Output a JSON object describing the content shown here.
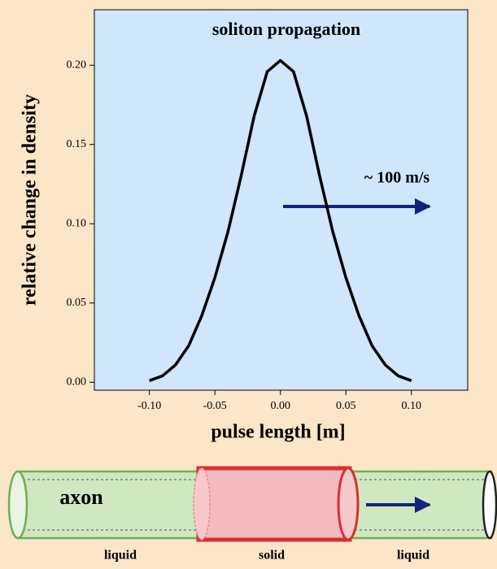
{
  "chart_data": {
    "type": "line",
    "title": "soliton propagation",
    "x_label": "pulse length [m]",
    "y_label": "relative change in density",
    "annotation": "~ 100 m/s",
    "x": [
      -0.1,
      -0.09,
      -0.08,
      -0.07,
      -0.06,
      -0.05,
      -0.04,
      -0.03,
      -0.02,
      -0.01,
      0,
      0.01,
      0.02,
      0.03,
      0.04,
      0.05,
      0.06,
      0.07,
      0.08,
      0.09,
      0.1
    ],
    "series": [
      {
        "color": "#000000",
        "values": [
          0.001,
          0.004,
          0.011,
          0.023,
          0.042,
          0.066,
          0.095,
          0.13,
          0.168,
          0.196,
          0.203,
          0.196,
          0.168,
          0.13,
          0.095,
          0.066,
          0.042,
          0.023,
          0.011,
          0.004,
          0.001
        ]
      }
    ],
    "xlim": [
      -0.142,
      0.143
    ],
    "ylim": [
      -0.005,
      0.235
    ],
    "xticks": [
      {
        "value": -0.1,
        "label": "-0.10"
      },
      -0.05,
      {
        "value": 0,
        "label": "0.00"
      },
      0.05,
      {
        "value": 0.1,
        "label": "0.10"
      }
    ],
    "yticks": [
      {
        "value": 0,
        "label": "0.00"
      },
      0.05,
      {
        "value": 0.1,
        "label": "0.10"
      },
      0.15,
      {
        "value": 0.2,
        "label": "0.20"
      }
    ],
    "grid": false
  },
  "diagram": {
    "label": "axon",
    "regions": [
      "liquid",
      "solid",
      "liquid"
    ]
  }
}
